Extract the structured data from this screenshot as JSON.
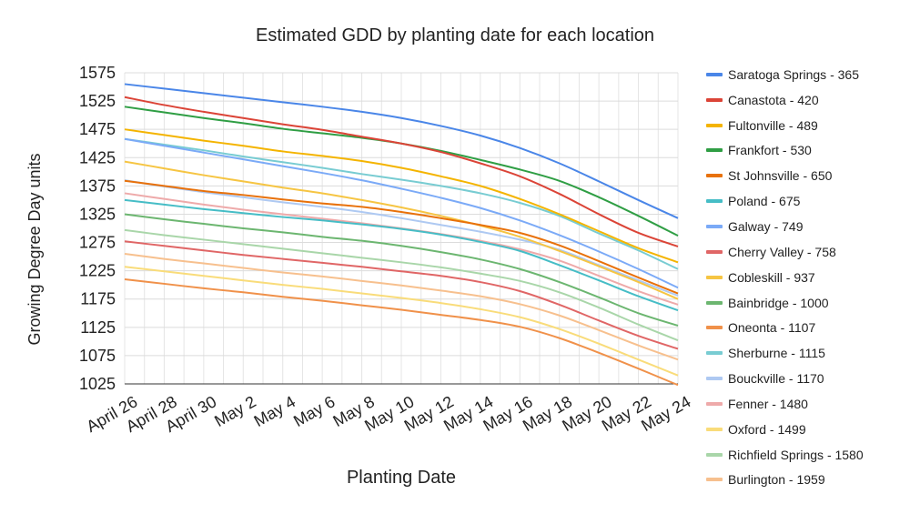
{
  "chart_data": {
    "type": "line",
    "title": "Estimated GDD by planting date for each location",
    "xlabel": "Planting Date",
    "ylabel": "Growing Degree Day units",
    "x_ticks": [
      "April 26",
      "April 28",
      "April 30",
      "May 2",
      "May 4",
      "May 6",
      "May 8",
      "May 10",
      "May 12",
      "May 14",
      "May 16",
      "May 18",
      "May 20",
      "May 22",
      "May 24"
    ],
    "x_dates": [
      "April 26",
      "April 28",
      "April 30",
      "May 2",
      "May 4",
      "May 6",
      "May 8",
      "May 10",
      "May 12",
      "May 14",
      "May 16",
      "May 18",
      "May 20",
      "May 22",
      "May 24"
    ],
    "y_ticks": [
      1025,
      1075,
      1125,
      1175,
      1225,
      1275,
      1325,
      1375,
      1425,
      1475,
      1525,
      1575
    ],
    "ylim": [
      1025,
      1575
    ],
    "grid": true,
    "legend_position": "right",
    "series": [
      {
        "name": "Saratoga Springs - 365",
        "color": "#4a86e8",
        "values": [
          1555,
          1547,
          1539,
          1531,
          1523,
          1515,
          1506,
          1495,
          1481,
          1464,
          1442,
          1415,
          1383,
          1350,
          1318
        ]
      },
      {
        "name": "Canastota - 420",
        "color": "#db4437",
        "values": [
          1532,
          1518,
          1506,
          1495,
          1484,
          1474,
          1462,
          1450,
          1435,
          1415,
          1392,
          1361,
          1325,
          1292,
          1268
        ]
      },
      {
        "name": "Fultonville - 489",
        "color": "#f4b400",
        "values": [
          1475,
          1465,
          1455,
          1446,
          1436,
          1428,
          1419,
          1407,
          1392,
          1375,
          1352,
          1325,
          1295,
          1265,
          1240
        ]
      },
      {
        "name": "Frankfort - 530",
        "color": "#2f9e44",
        "values": [
          1515,
          1505,
          1495,
          1486,
          1476,
          1468,
          1460,
          1450,
          1437,
          1421,
          1404,
          1384,
          1355,
          1322,
          1287
        ]
      },
      {
        "name": "St Johnsville - 650",
        "color": "#e8710a",
        "values": [
          1384,
          1375,
          1366,
          1359,
          1351,
          1344,
          1338,
          1329,
          1318,
          1306,
          1292,
          1270,
          1242,
          1213,
          1185
        ]
      },
      {
        "name": "Poland - 675",
        "color": "#46bdc6",
        "values": [
          1350,
          1342,
          1334,
          1327,
          1320,
          1314,
          1307,
          1299,
          1289,
          1276,
          1260,
          1235,
          1208,
          1180,
          1155
        ]
      },
      {
        "name": "Galway - 749",
        "color": "#7baaf7",
        "values": [
          1458,
          1446,
          1434,
          1422,
          1410,
          1398,
          1385,
          1370,
          1354,
          1336,
          1314,
          1288,
          1259,
          1228,
          1195
        ]
      },
      {
        "name": "Cherry Valley - 758",
        "color": "#e06666",
        "values": [
          1277,
          1269,
          1261,
          1253,
          1246,
          1239,
          1232,
          1224,
          1216,
          1205,
          1189,
          1165,
          1137,
          1110,
          1087
        ]
      },
      {
        "name": "Cobleskill - 937",
        "color": "#f6c543",
        "values": [
          1418,
          1406,
          1394,
          1383,
          1372,
          1362,
          1350,
          1337,
          1322,
          1305,
          1285,
          1260,
          1233,
          1205,
          1175
        ]
      },
      {
        "name": "Bainbridge - 1000",
        "color": "#6cb670",
        "values": [
          1325,
          1316,
          1308,
          1300,
          1293,
          1285,
          1278,
          1269,
          1258,
          1245,
          1228,
          1205,
          1178,
          1150,
          1128
        ]
      },
      {
        "name": "Oneonta - 1107",
        "color": "#f0914a",
        "values": [
          1210,
          1202,
          1194,
          1187,
          1179,
          1172,
          1164,
          1156,
          1147,
          1138,
          1126,
          1106,
          1080,
          1052,
          1023
        ]
      },
      {
        "name": "Sherburne - 1115",
        "color": "#78ccd2",
        "values": [
          1458,
          1448,
          1438,
          1427,
          1417,
          1407,
          1396,
          1386,
          1375,
          1362,
          1345,
          1322,
          1291,
          1261,
          1228
        ]
      },
      {
        "name": "Bouckville - 1170",
        "color": "#aec9f2",
        "values": [
          1385,
          1374,
          1364,
          1355,
          1346,
          1338,
          1329,
          1318,
          1306,
          1294,
          1280,
          1262,
          1235,
          1208,
          1181
        ]
      },
      {
        "name": "Fenner - 1480",
        "color": "#eeaaaa",
        "values": [
          1362,
          1352,
          1342,
          1333,
          1325,
          1317,
          1309,
          1300,
          1290,
          1278,
          1263,
          1243,
          1216,
          1189,
          1165
        ]
      },
      {
        "name": "Oxford - 1499",
        "color": "#f9dc7a",
        "values": [
          1232,
          1224,
          1216,
          1208,
          1200,
          1193,
          1185,
          1177,
          1168,
          1157,
          1143,
          1122,
          1096,
          1068,
          1040
        ]
      },
      {
        "name": "Richfield Springs - 1580",
        "color": "#a9d6a9",
        "values": [
          1297,
          1288,
          1280,
          1272,
          1264,
          1256,
          1248,
          1240,
          1231,
          1220,
          1207,
          1187,
          1160,
          1130,
          1102
        ]
      },
      {
        "name": "Burlington - 1959",
        "color": "#f7c08e",
        "values": [
          1255,
          1246,
          1238,
          1230,
          1222,
          1215,
          1207,
          1199,
          1190,
          1180,
          1166,
          1146,
          1120,
          1093,
          1068
        ]
      }
    ]
  }
}
